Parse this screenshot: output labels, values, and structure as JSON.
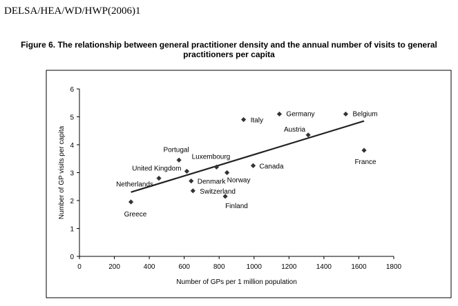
{
  "document": {
    "header": "DELSA/HEA/WD/HWP(2006)1",
    "figure_title": "Figure 6.  The relationship between general practitioner density and the annual number of visits to general practitioners per capita"
  },
  "chart_data": {
    "type": "scatter",
    "xlabel": "Number of GPs per 1 million population",
    "ylabel": "Number of GP visits per capita",
    "xlim": [
      0,
      1800
    ],
    "ylim": [
      0,
      6
    ],
    "xticks": [
      0,
      200,
      400,
      600,
      800,
      1000,
      1200,
      1400,
      1600,
      1800
    ],
    "yticks": [
      0,
      1,
      2,
      3,
      4,
      5,
      6
    ],
    "grid": false,
    "legend": "none",
    "marker": "diamond",
    "color": "#333333",
    "points": [
      {
        "label": "Italy",
        "x": 940,
        "y": 4.9
      },
      {
        "label": "Germany",
        "x": 1145,
        "y": 5.1
      },
      {
        "label": "Belgium",
        "x": 1525,
        "y": 5.1
      },
      {
        "label": "Austria",
        "x": 1310,
        "y": 4.35
      },
      {
        "label": "France",
        "x": 1630,
        "y": 3.8
      },
      {
        "label": "Portugal",
        "x": 570,
        "y": 3.45
      },
      {
        "label": "Luxembourg",
        "x": 785,
        "y": 3.2
      },
      {
        "label": "United Kingdom",
        "x": 615,
        "y": 3.05
      },
      {
        "label": "Canada",
        "x": 995,
        "y": 3.25
      },
      {
        "label": "Norway",
        "x": 845,
        "y": 3.0
      },
      {
        "label": "Netherlands",
        "x": 455,
        "y": 2.8
      },
      {
        "label": "Denmark",
        "x": 640,
        "y": 2.7
      },
      {
        "label": "Switzerland",
        "x": 650,
        "y": 2.35
      },
      {
        "label": "Finland",
        "x": 835,
        "y": 2.15
      },
      {
        "label": "Greece",
        "x": 295,
        "y": 1.95
      }
    ],
    "trendline": {
      "x": [
        295,
        1630
      ],
      "y": [
        2.3,
        4.85
      ]
    }
  }
}
